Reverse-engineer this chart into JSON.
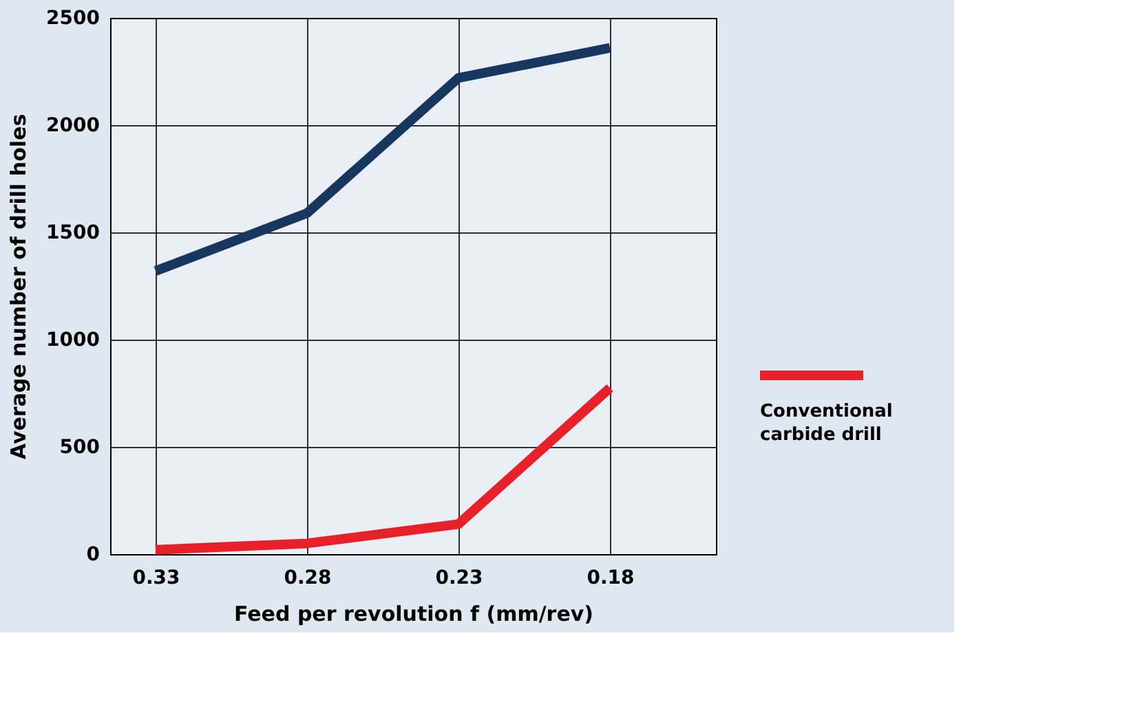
{
  "chart_data": {
    "type": "line",
    "xlabel": "Feed per revolution f (mm/rev)",
    "ylabel": "Average number of drill holes",
    "categories": [
      "0.33",
      "0.28",
      "0.23",
      "0.18"
    ],
    "series": [
      {
        "color": "#17375e",
        "values": [
          1320,
          1590,
          2220,
          2360
        ]
      },
      {
        "name": "Conventional carbide drill",
        "color": "#e8202a",
        "values": [
          20,
          50,
          140,
          775
        ]
      }
    ],
    "ylim": [
      0,
      2500
    ],
    "yticks": [
      0,
      500,
      1000,
      1500,
      2000,
      2500
    ],
    "grid": true,
    "legend": "right",
    "marker": "none",
    "line_style": "solid"
  }
}
